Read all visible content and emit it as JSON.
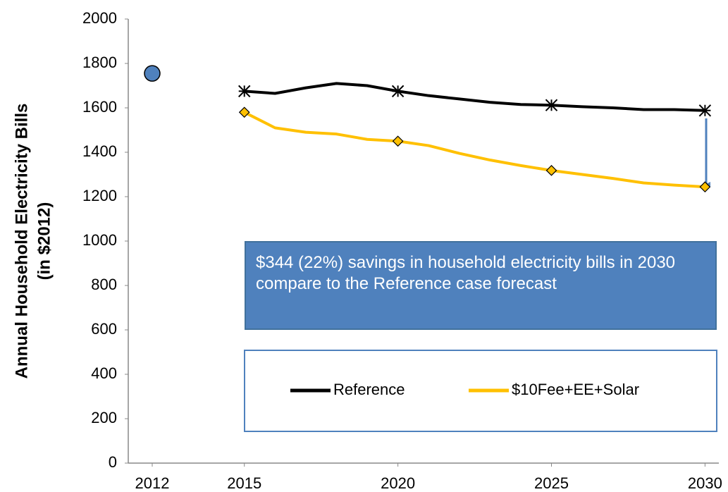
{
  "chart_data": {
    "type": "line",
    "y_label": [
      "Annual Household Electricity Bills",
      "(in $2012)"
    ],
    "x": [
      2015,
      2016,
      2017,
      2018,
      2019,
      2020,
      2021,
      2022,
      2023,
      2024,
      2025,
      2026,
      2027,
      2028,
      2029,
      2030
    ],
    "series": [
      {
        "name": "Reference",
        "color": "#000000",
        "marker": "asterisk",
        "values": [
          1675,
          1665,
          1690,
          1710,
          1700,
          1675,
          1655,
          1640,
          1625,
          1615,
          1612,
          1605,
          1600,
          1592,
          1592,
          1588
        ]
      },
      {
        "name": "$10Fee+EE+Solar",
        "color": "#ffc000",
        "marker": "diamond",
        "values": [
          1580,
          1510,
          1490,
          1482,
          1458,
          1450,
          1430,
          1395,
          1365,
          1340,
          1318,
          1300,
          1282,
          1262,
          1252,
          1244
        ]
      }
    ],
    "marker_every": 5,
    "highlight": {
      "x": 2012,
      "value": 1755,
      "color": "#4f81bd"
    },
    "annotation": "$344 (22%) savings in household electricity bills in 2030 compare to the Reference case forecast",
    "xlim": [
      2011.22,
      2030.45
    ],
    "xticks": [
      2012,
      2015,
      2020,
      2025,
      2030
    ],
    "ylim": [
      0,
      2000
    ],
    "yticks": [
      0,
      200,
      400,
      600,
      800,
      1000,
      1200,
      1400,
      1600,
      1800,
      2000
    ],
    "grid": false
  }
}
